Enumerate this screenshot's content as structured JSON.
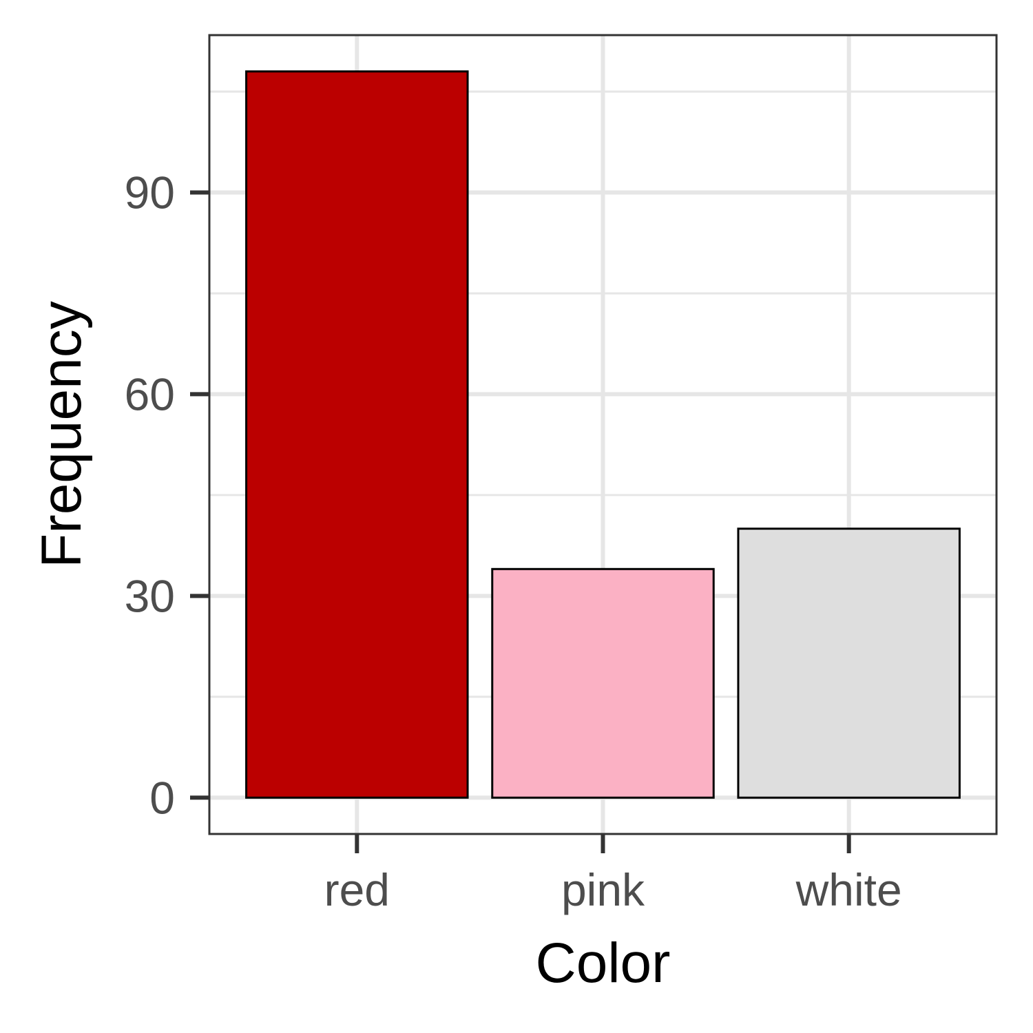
{
  "chart_data": {
    "type": "bar",
    "categories": [
      "red",
      "pink",
      "white"
    ],
    "values": [
      108,
      34,
      40
    ],
    "bar_colors": [
      "#BB0000",
      "#FBB1C4",
      "#DEDEDE"
    ],
    "bar_outline_color": "#000000",
    "xlabel": "Color",
    "ylabel": "Frequency",
    "yticks": [
      0,
      30,
      60,
      90
    ],
    "ylim": [
      -5.4,
      113.4
    ],
    "grid": true,
    "grid_color": "#E6E6E6",
    "panel_border_color": "#333333"
  }
}
